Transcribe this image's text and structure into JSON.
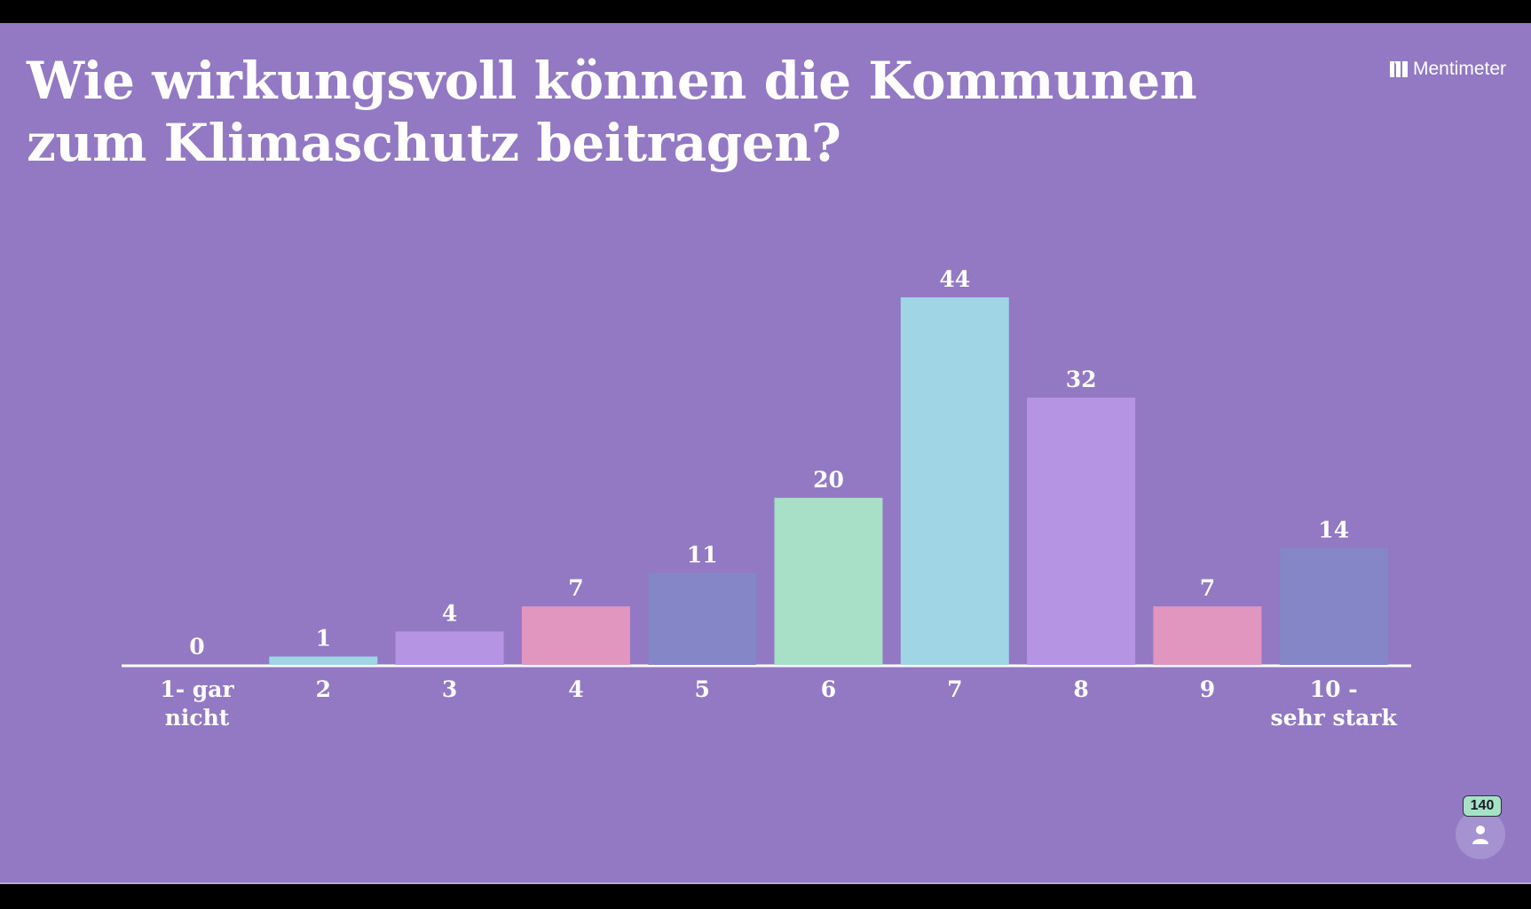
{
  "title": "Wie wirkungsvoll können die Kommunen zum Klimaschutz beitragen?",
  "brand": {
    "name": "Mentimeter",
    "icon": "mentimeter-logo-icon"
  },
  "participants": {
    "count": "140",
    "icon": "person-icon"
  },
  "colors": {
    "background": "#9379c3",
    "bar_palette": [
      "#a0d5e6",
      "#a0d5e6",
      "#b494e3",
      "#e096bf",
      "#8486c8",
      "#a7e0c6",
      "#a0d5e6",
      "#b494e3",
      "#e096bf",
      "#8486c8"
    ]
  },
  "chart_data": {
    "type": "bar",
    "title": "Wie wirkungsvoll können die Kommunen zum Klimaschutz beitragen?",
    "categories": [
      "1- gar nicht",
      "2",
      "3",
      "4",
      "5",
      "6",
      "7",
      "8",
      "9",
      "10 - sehr stark"
    ],
    "values": [
      0,
      1,
      4,
      7,
      11,
      20,
      44,
      32,
      7,
      14
    ],
    "xlabel": "",
    "ylabel": "",
    "ylim": [
      0,
      44
    ],
    "grid": false,
    "legend": "none"
  }
}
